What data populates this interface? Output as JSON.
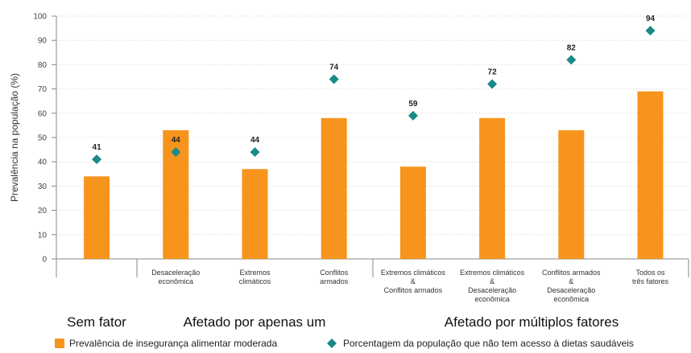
{
  "chart_data": {
    "type": "bar",
    "y_label": "Prevalência na população (%)",
    "categories": [
      null,
      "Desaceleração\neconômica",
      "Extremos\nclimáticos",
      "Conflitos\narmados",
      "Extremos climáticos\n&\nConflitos armados",
      "Extremos climáticos\n&\nDesaceleração\neconômica",
      "Conflitos armados\n&\nDesaceleração\neconômica",
      "Todos os\ntrês fatores"
    ],
    "series": [
      {
        "name": "Prevalência de insegurança alimentar moderada",
        "color": "#f7941d",
        "values": [
          34,
          53,
          37,
          58,
          38,
          58,
          53,
          69
        ]
      },
      {
        "name": "Porcentagem da população que não tem acesso à dietas saudáveis",
        "color": "#1a8a86",
        "marker": "diamond",
        "values": [
          41,
          44,
          44,
          74,
          59,
          72,
          82,
          94
        ]
      }
    ],
    "groups": [
      "Sem fator",
      "Afetado por apenas um",
      "Afetado por múltiplos fatores"
    ],
    "ylim": [
      0,
      100
    ],
    "yticks": [
      0,
      10,
      20,
      30,
      40,
      50,
      60,
      70,
      80,
      90,
      100
    ],
    "grid": true
  }
}
